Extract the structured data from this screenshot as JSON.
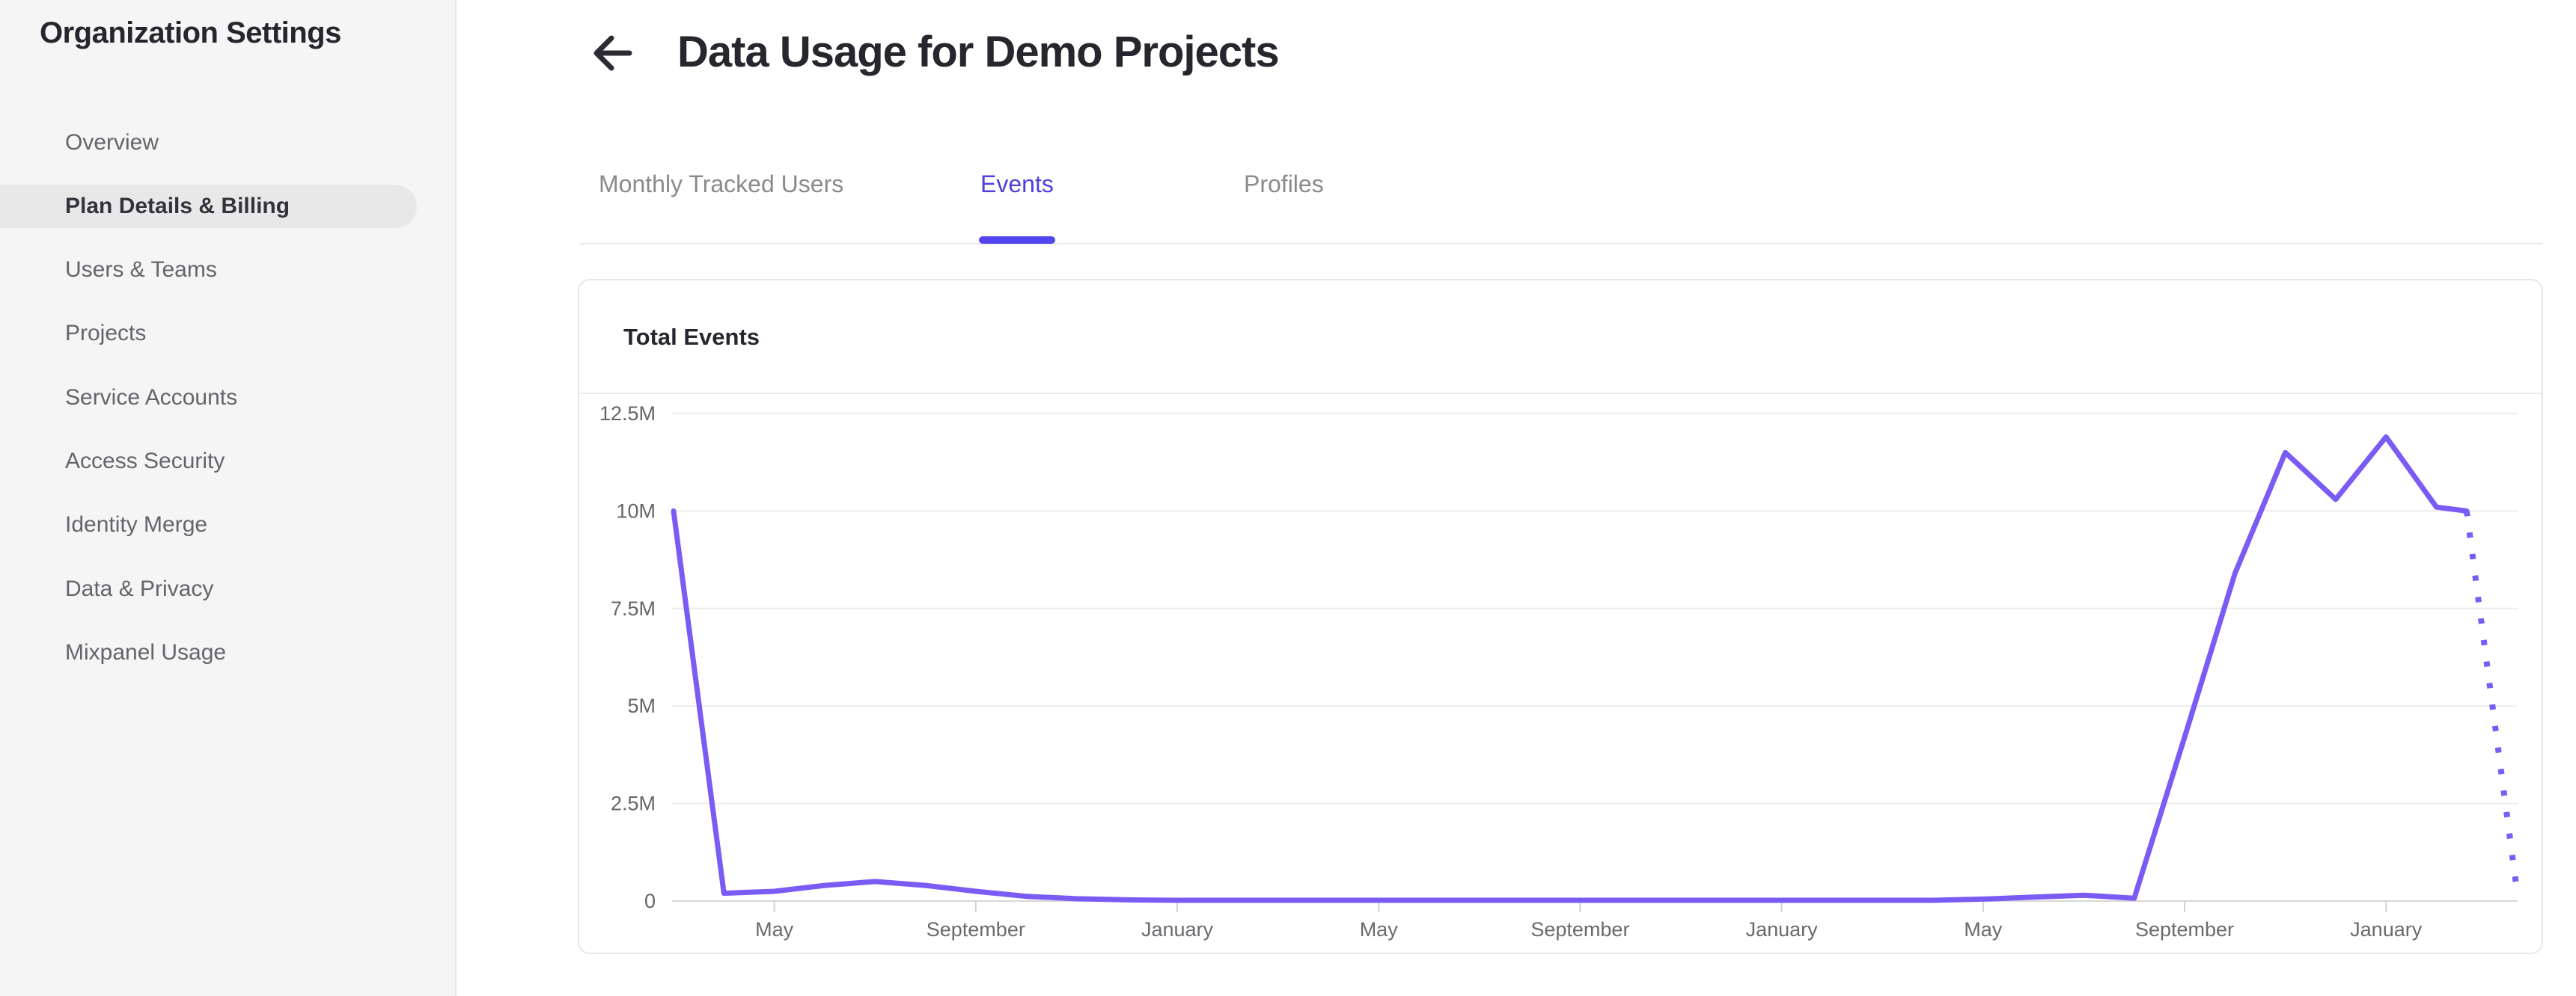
{
  "sidebar": {
    "title": "Organization Settings",
    "items": [
      {
        "label": "Overview",
        "selected": false
      },
      {
        "label": "Plan Details & Billing",
        "selected": true
      },
      {
        "label": "Users & Teams",
        "selected": false
      },
      {
        "label": "Projects",
        "selected": false
      },
      {
        "label": "Service Accounts",
        "selected": false
      },
      {
        "label": "Access Security",
        "selected": false
      },
      {
        "label": "Identity Merge",
        "selected": false
      },
      {
        "label": "Data & Privacy",
        "selected": false
      },
      {
        "label": "Mixpanel Usage",
        "selected": false
      }
    ]
  },
  "header": {
    "title": "Data Usage for Demo Projects"
  },
  "tabs": [
    {
      "label": "Monthly Tracked Users",
      "active": false
    },
    {
      "label": "Events",
      "active": true
    },
    {
      "label": "Profiles",
      "active": false
    }
  ],
  "card": {
    "title": "Total Events"
  },
  "colors": {
    "line": "#7a5cf5",
    "tab_active": "#4c3fdb",
    "tab_underline": "#5346f0",
    "gridline": "#ededef",
    "axis_line": "#d7d7d9",
    "tick": "#d2d2d4",
    "axis_label": "#65656a"
  },
  "chart_data": {
    "type": "line",
    "title": "Total Events",
    "legend": "none",
    "grid": "horizontal",
    "ylim_millions": [
      0,
      12.5
    ],
    "y_tick_labels": [
      "0",
      "2.5M",
      "5M",
      "7.5M",
      "10M",
      "12.5M"
    ],
    "y_tick_values_millions": [
      0,
      2.5,
      5,
      7.5,
      10,
      12.5
    ],
    "x_tick_labels": [
      "May",
      "September",
      "January",
      "May",
      "September",
      "January",
      "May",
      "September",
      "January"
    ],
    "x_tick_indices": [
      2,
      6,
      10,
      14,
      18,
      22,
      26,
      30,
      34
    ],
    "series": [
      {
        "name": "Total Events",
        "color": "#7a5cf5",
        "points_millions": [
          10,
          0.2,
          0.25,
          0.4,
          0.5,
          0.4,
          0.25,
          0.12,
          0.06,
          0.03,
          0.02,
          0.02,
          0.02,
          0.02,
          0.02,
          0.02,
          0.02,
          0.02,
          0.02,
          0.02,
          0.02,
          0.02,
          0.02,
          0.02,
          0.02,
          0.02,
          0.05,
          0.1,
          0.15,
          0.07,
          4.2,
          8.4,
          11.5,
          10.3,
          11.9,
          10.1
        ],
        "partial_month_end": {
          "x_index": 35.6,
          "value_millions": 10.0
        },
        "projected_dotted_end": {
          "x_index": 36.6,
          "value_millions": 0.25
        }
      }
    ]
  }
}
